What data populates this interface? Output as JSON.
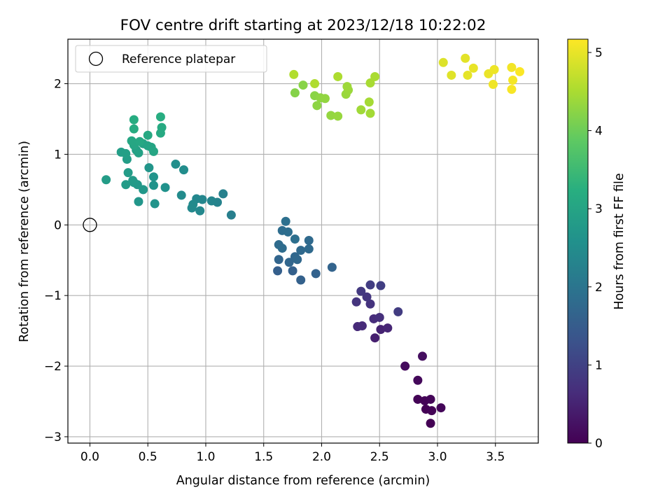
{
  "chart_data": {
    "type": "scatter",
    "title": "FOV centre drift starting at 2023/12/18 10:22:02",
    "xlabel": "Angular distance from reference (arcmin)",
    "ylabel": "Rotation from reference (arcmin)",
    "xlim": [
      -0.19,
      3.87
    ],
    "ylim": [
      -3.09,
      2.63
    ],
    "xticks": [
      0.0,
      0.5,
      1.0,
      1.5,
      2.0,
      2.5,
      3.0,
      3.5
    ],
    "xtick_labels": [
      "0.0",
      "0.5",
      "1.0",
      "1.5",
      "2.0",
      "2.5",
      "3.0",
      "3.5"
    ],
    "yticks": [
      -3,
      -2,
      -1,
      0,
      1,
      2
    ],
    "ytick_labels": [
      "−3",
      "−2",
      "−1",
      "0",
      "1",
      "2"
    ],
    "grid": true,
    "legend": {
      "position": "top-left",
      "entries": [
        "Reference platepar"
      ]
    },
    "reference_point": {
      "x": 0,
      "y": 0
    },
    "colorbar": {
      "label": "Hours from first FF file",
      "colormap": "viridis",
      "range": [
        0,
        5.17
      ],
      "ticks": [
        0,
        1,
        2,
        3,
        4,
        5
      ],
      "tick_labels": [
        "0",
        "1",
        "2",
        "3",
        "4",
        "5"
      ]
    },
    "points": [
      {
        "x": 2.94,
        "y": -2.81,
        "h": 0.0
      },
      {
        "x": 2.9,
        "y": -2.61,
        "h": 0.02
      },
      {
        "x": 2.95,
        "y": -2.63,
        "h": 0.03
      },
      {
        "x": 2.83,
        "y": -2.47,
        "h": 0.04
      },
      {
        "x": 2.89,
        "y": -2.49,
        "h": 0.05
      },
      {
        "x": 2.94,
        "y": -2.47,
        "h": 0.06
      },
      {
        "x": 3.03,
        "y": -2.59,
        "h": 0.08
      },
      {
        "x": 2.83,
        "y": -2.2,
        "h": 0.1
      },
      {
        "x": 2.72,
        "y": -2.0,
        "h": 0.15
      },
      {
        "x": 2.87,
        "y": -1.86,
        "h": 0.2
      },
      {
        "x": 2.46,
        "y": -1.6,
        "h": 0.45
      },
      {
        "x": 2.51,
        "y": -1.48,
        "h": 0.5
      },
      {
        "x": 2.57,
        "y": -1.46,
        "h": 0.55
      },
      {
        "x": 2.31,
        "y": -1.44,
        "h": 0.6
      },
      {
        "x": 2.35,
        "y": -1.43,
        "h": 0.62
      },
      {
        "x": 2.45,
        "y": -1.33,
        "h": 0.65
      },
      {
        "x": 2.5,
        "y": -1.31,
        "h": 0.7
      },
      {
        "x": 2.42,
        "y": -1.12,
        "h": 0.75
      },
      {
        "x": 2.3,
        "y": -1.09,
        "h": 0.78
      },
      {
        "x": 2.39,
        "y": -1.02,
        "h": 0.8
      },
      {
        "x": 2.34,
        "y": -0.94,
        "h": 0.85
      },
      {
        "x": 2.66,
        "y": -1.23,
        "h": 0.9
      },
      {
        "x": 2.42,
        "y": -0.85,
        "h": 0.92
      },
      {
        "x": 2.51,
        "y": -0.86,
        "h": 0.95
      },
      {
        "x": 1.62,
        "y": -0.65,
        "h": 1.55
      },
      {
        "x": 1.75,
        "y": -0.65,
        "h": 1.58
      },
      {
        "x": 1.82,
        "y": -0.78,
        "h": 1.6
      },
      {
        "x": 1.95,
        "y": -0.69,
        "h": 1.62
      },
      {
        "x": 2.09,
        "y": -0.6,
        "h": 1.65
      },
      {
        "x": 1.63,
        "y": -0.49,
        "h": 1.67
      },
      {
        "x": 1.72,
        "y": -0.53,
        "h": 1.7
      },
      {
        "x": 1.77,
        "y": -0.45,
        "h": 1.72
      },
      {
        "x": 1.79,
        "y": -0.49,
        "h": 1.73
      },
      {
        "x": 1.82,
        "y": -0.36,
        "h": 1.75
      },
      {
        "x": 1.89,
        "y": -0.34,
        "h": 1.77
      },
      {
        "x": 1.89,
        "y": -0.22,
        "h": 1.78
      },
      {
        "x": 1.63,
        "y": -0.28,
        "h": 1.8
      },
      {
        "x": 1.66,
        "y": -0.33,
        "h": 1.82
      },
      {
        "x": 1.66,
        "y": -0.08,
        "h": 1.84
      },
      {
        "x": 1.71,
        "y": -0.1,
        "h": 1.86
      },
      {
        "x": 1.77,
        "y": -0.2,
        "h": 1.88
      },
      {
        "x": 1.69,
        "y": 0.05,
        "h": 1.9
      },
      {
        "x": 1.22,
        "y": 0.14,
        "h": 2.2
      },
      {
        "x": 1.15,
        "y": 0.44,
        "h": 2.25
      },
      {
        "x": 1.1,
        "y": 0.32,
        "h": 2.3
      },
      {
        "x": 1.05,
        "y": 0.34,
        "h": 2.33
      },
      {
        "x": 0.97,
        "y": 0.36,
        "h": 2.35
      },
      {
        "x": 0.92,
        "y": 0.37,
        "h": 2.38
      },
      {
        "x": 0.95,
        "y": 0.2,
        "h": 2.4
      },
      {
        "x": 0.88,
        "y": 0.24,
        "h": 2.42
      },
      {
        "x": 0.89,
        "y": 0.29,
        "h": 2.44
      },
      {
        "x": 0.79,
        "y": 0.42,
        "h": 2.46
      },
      {
        "x": 0.81,
        "y": 0.78,
        "h": 2.5
      },
      {
        "x": 0.74,
        "y": 0.86,
        "h": 2.55
      },
      {
        "x": 0.65,
        "y": 0.53,
        "h": 2.6
      },
      {
        "x": 0.55,
        "y": 0.56,
        "h": 2.63
      },
      {
        "x": 0.55,
        "y": 0.68,
        "h": 2.65
      },
      {
        "x": 0.56,
        "y": 0.3,
        "h": 2.66
      },
      {
        "x": 0.51,
        "y": 0.81,
        "h": 2.68
      },
      {
        "x": 0.42,
        "y": 0.33,
        "h": 2.7
      },
      {
        "x": 0.46,
        "y": 0.5,
        "h": 2.72
      },
      {
        "x": 0.41,
        "y": 0.57,
        "h": 2.74
      },
      {
        "x": 0.38,
        "y": 0.6,
        "h": 2.76
      },
      {
        "x": 0.37,
        "y": 0.63,
        "h": 2.78
      },
      {
        "x": 0.31,
        "y": 0.57,
        "h": 2.8
      },
      {
        "x": 0.33,
        "y": 0.74,
        "h": 2.82
      },
      {
        "x": 0.14,
        "y": 0.64,
        "h": 2.84
      },
      {
        "x": 0.32,
        "y": 0.93,
        "h": 2.86
      },
      {
        "x": 0.27,
        "y": 1.03,
        "h": 2.88
      },
      {
        "x": 0.31,
        "y": 1.01,
        "h": 2.9
      },
      {
        "x": 0.4,
        "y": 1.06,
        "h": 2.92
      },
      {
        "x": 0.42,
        "y": 1.02,
        "h": 2.94
      },
      {
        "x": 0.46,
        "y": 1.15,
        "h": 2.96
      },
      {
        "x": 0.5,
        "y": 1.12,
        "h": 2.98
      },
      {
        "x": 0.53,
        "y": 1.1,
        "h": 3.0
      },
      {
        "x": 0.55,
        "y": 1.04,
        "h": 3.02
      },
      {
        "x": 0.38,
        "y": 1.13,
        "h": 3.04
      },
      {
        "x": 0.36,
        "y": 1.19,
        "h": 3.06
      },
      {
        "x": 0.43,
        "y": 1.18,
        "h": 3.08
      },
      {
        "x": 0.5,
        "y": 1.27,
        "h": 3.1
      },
      {
        "x": 0.61,
        "y": 1.3,
        "h": 3.12
      },
      {
        "x": 0.62,
        "y": 1.38,
        "h": 3.14
      },
      {
        "x": 0.38,
        "y": 1.36,
        "h": 3.16
      },
      {
        "x": 0.38,
        "y": 1.49,
        "h": 3.18
      },
      {
        "x": 0.61,
        "y": 1.53,
        "h": 3.2
      },
      {
        "x": 1.77,
        "y": 1.87,
        "h": 4.2
      },
      {
        "x": 1.84,
        "y": 1.98,
        "h": 4.22
      },
      {
        "x": 1.94,
        "y": 1.83,
        "h": 4.24
      },
      {
        "x": 1.96,
        "y": 1.69,
        "h": 4.26
      },
      {
        "x": 1.99,
        "y": 1.8,
        "h": 4.28
      },
      {
        "x": 2.03,
        "y": 1.79,
        "h": 4.3
      },
      {
        "x": 2.08,
        "y": 1.55,
        "h": 4.32
      },
      {
        "x": 2.14,
        "y": 1.54,
        "h": 4.34
      },
      {
        "x": 2.21,
        "y": 1.85,
        "h": 4.36
      },
      {
        "x": 2.23,
        "y": 1.91,
        "h": 4.38
      },
      {
        "x": 2.22,
        "y": 1.96,
        "h": 4.4
      },
      {
        "x": 2.34,
        "y": 1.63,
        "h": 4.42
      },
      {
        "x": 2.42,
        "y": 1.58,
        "h": 4.44
      },
      {
        "x": 2.41,
        "y": 1.74,
        "h": 4.46
      },
      {
        "x": 2.42,
        "y": 2.01,
        "h": 4.48
      },
      {
        "x": 2.46,
        "y": 2.1,
        "h": 4.5
      },
      {
        "x": 2.14,
        "y": 2.1,
        "h": 4.52
      },
      {
        "x": 1.94,
        "y": 2.0,
        "h": 4.54
      },
      {
        "x": 1.76,
        "y": 2.13,
        "h": 4.56
      },
      {
        "x": 3.05,
        "y": 2.3,
        "h": 4.9
      },
      {
        "x": 3.12,
        "y": 2.12,
        "h": 4.93
      },
      {
        "x": 3.24,
        "y": 2.36,
        "h": 4.96
      },
      {
        "x": 3.26,
        "y": 2.12,
        "h": 4.98
      },
      {
        "x": 3.31,
        "y": 2.22,
        "h": 5.0
      },
      {
        "x": 3.44,
        "y": 2.14,
        "h": 5.02
      },
      {
        "x": 3.49,
        "y": 2.2,
        "h": 5.04
      },
      {
        "x": 3.48,
        "y": 1.99,
        "h": 5.06
      },
      {
        "x": 3.64,
        "y": 2.23,
        "h": 5.08
      },
      {
        "x": 3.65,
        "y": 2.05,
        "h": 5.1
      },
      {
        "x": 3.64,
        "y": 1.92,
        "h": 5.12
      },
      {
        "x": 3.71,
        "y": 2.17,
        "h": 5.15
      }
    ]
  }
}
